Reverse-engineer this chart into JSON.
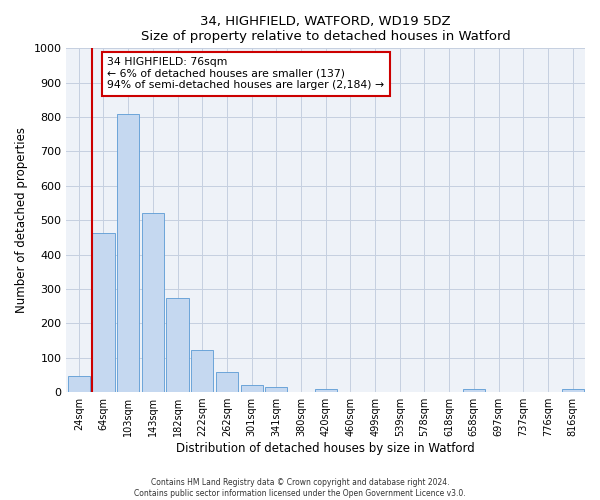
{
  "title": "34, HIGHFIELD, WATFORD, WD19 5DZ",
  "subtitle": "Size of property relative to detached houses in Watford",
  "xlabel": "Distribution of detached houses by size in Watford",
  "ylabel": "Number of detached properties",
  "bar_labels": [
    "24sqm",
    "64sqm",
    "103sqm",
    "143sqm",
    "182sqm",
    "222sqm",
    "262sqm",
    "301sqm",
    "341sqm",
    "380sqm",
    "420sqm",
    "460sqm",
    "499sqm",
    "539sqm",
    "578sqm",
    "618sqm",
    "658sqm",
    "697sqm",
    "737sqm",
    "776sqm",
    "816sqm"
  ],
  "bar_values": [
    47,
    462,
    810,
    522,
    275,
    122,
    58,
    22,
    15,
    0,
    10,
    0,
    0,
    0,
    0,
    0,
    8,
    0,
    0,
    0,
    8
  ],
  "bar_color": "#c5d8f0",
  "bar_edge_color": "#5b9bd5",
  "vline_color": "#cc0000",
  "annotation_line1": "34 HIGHFIELD: 76sqm",
  "annotation_line2": "← 6% of detached houses are smaller (137)",
  "annotation_line3": "94% of semi-detached houses are larger (2,184) →",
  "annotation_box_color": "#ffffff",
  "annotation_box_edge": "#cc0000",
  "ylim": [
    0,
    1000
  ],
  "yticks": [
    0,
    100,
    200,
    300,
    400,
    500,
    600,
    700,
    800,
    900,
    1000
  ],
  "footer_line1": "Contains HM Land Registry data © Crown copyright and database right 2024.",
  "footer_line2": "Contains public sector information licensed under the Open Government Licence v3.0.",
  "bg_color": "#eef2f8",
  "grid_color": "#c5cfe0"
}
